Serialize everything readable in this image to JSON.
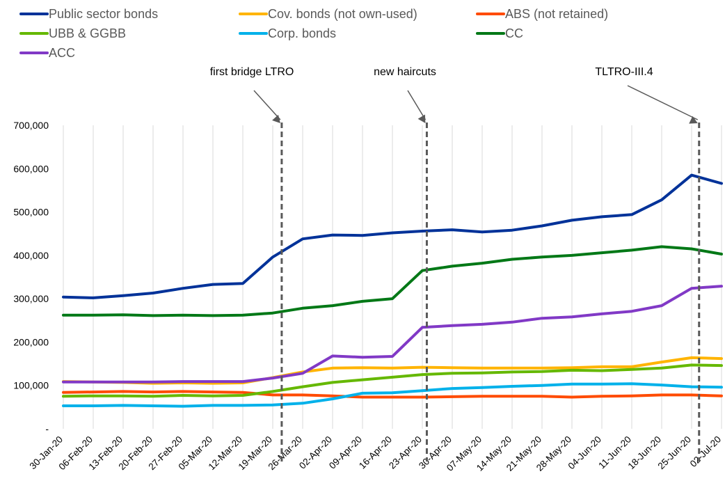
{
  "chart_data": {
    "type": "line",
    "title": "",
    "xlabel": "",
    "ylabel": "",
    "ylim": [
      0,
      700000
    ],
    "yticks": [
      "-",
      "100,000",
      "200,000",
      "300,000",
      "400,000",
      "500,000",
      "600,000",
      "700,000"
    ],
    "grid": "vertical",
    "legend_position": "top-left",
    "categories": [
      "30-Jan-20",
      "06-Feb-20",
      "13-Feb-20",
      "20-Feb-20",
      "27-Feb-20",
      "05-Mar-20",
      "12-Mar-20",
      "19-Mar-20",
      "26-Mar-20",
      "02-Apr-20",
      "09-Apr-20",
      "16-Apr-20",
      "23-Apr-20",
      "30-Apr-20",
      "07-May-20",
      "14-May-20",
      "21-May-20",
      "28-May-20",
      "04-Jun-20",
      "11-Jun-20",
      "18-Jun-20",
      "25-Jun-20",
      "02-Jul-20"
    ],
    "series": [
      {
        "name": "Public sector bonds",
        "color": "#003299",
        "values": [
          304000,
          302000,
          307000,
          313000,
          324000,
          333000,
          335000,
          396000,
          438000,
          447000,
          446000,
          452000,
          456000,
          459000,
          454000,
          458000,
          468000,
          481000,
          489000,
          494000,
          528000,
          585000,
          566000
        ]
      },
      {
        "name": "Cov. bonds (not own-used)",
        "color": "#ffb400",
        "values": [
          109000,
          108000,
          107000,
          105000,
          106000,
          105000,
          106000,
          118000,
          131000,
          140000,
          141000,
          140000,
          142000,
          141000,
          140000,
          140000,
          140000,
          141000,
          143000,
          143000,
          154000,
          164000,
          162000
        ]
      },
      {
        "name": "ABS (not retained)",
        "color": "#ff4b00",
        "values": [
          84000,
          85000,
          86000,
          85000,
          86000,
          85000,
          84000,
          78000,
          78000,
          76000,
          73000,
          73000,
          73000,
          74000,
          75000,
          75000,
          75000,
          73000,
          75000,
          76000,
          78000,
          78000,
          76000
        ]
      },
      {
        "name": "UBB & GGBB",
        "color": "#65b800",
        "values": [
          75000,
          76000,
          76000,
          75000,
          77000,
          76000,
          77000,
          86000,
          97000,
          107000,
          113000,
          119000,
          125000,
          128000,
          129000,
          131000,
          132000,
          135000,
          134000,
          137000,
          140000,
          147000,
          146000
        ]
      },
      {
        "name": "Corp. bonds",
        "color": "#00b1ea",
        "values": [
          53000,
          53000,
          54000,
          53000,
          52000,
          54000,
          54000,
          55000,
          59000,
          69000,
          82000,
          83000,
          88000,
          93000,
          95000,
          98000,
          100000,
          103000,
          103000,
          104000,
          101000,
          97000,
          96000
        ]
      },
      {
        "name": "CC",
        "color": "#007816",
        "values": [
          262000,
          262000,
          263000,
          261000,
          262000,
          261000,
          262000,
          267000,
          278000,
          284000,
          294000,
          300000,
          365000,
          375000,
          382000,
          391000,
          396000,
          400000,
          406000,
          412000,
          420000,
          415000,
          403000
        ]
      },
      {
        "name": "ACC",
        "color": "#8139c6",
        "values": [
          108000,
          108000,
          108000,
          108000,
          109000,
          109000,
          109000,
          117000,
          128000,
          168000,
          165000,
          167000,
          234000,
          238000,
          241000,
          246000,
          255000,
          258000,
          265000,
          271000,
          284000,
          324000,
          329000
        ]
      }
    ],
    "annotations": [
      {
        "label": "first bridge LTRO",
        "x": 7.3
      },
      {
        "label": "new haircuts",
        "x": 12.15
      },
      {
        "label": "TLTRO-III.4",
        "x": 21.25
      }
    ]
  }
}
